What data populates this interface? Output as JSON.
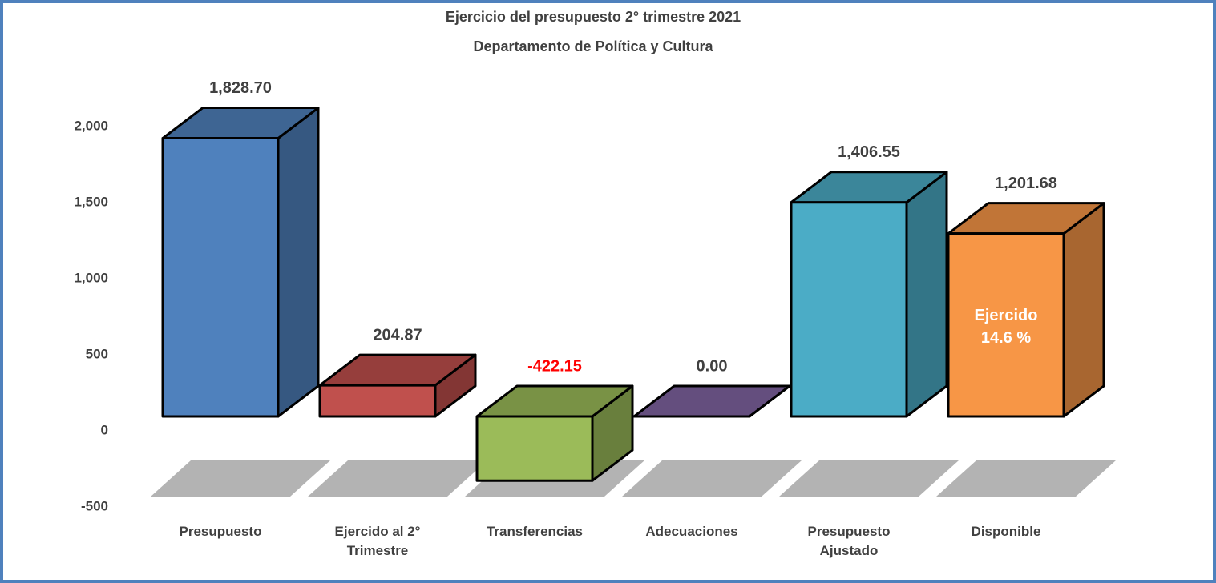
{
  "chart_data": {
    "type": "bar3d",
    "title": "Ejercicio del presupuesto  2° trimestre 2021",
    "subtitle": "Departamento de Política y Cultura",
    "categories": [
      "Presupuesto",
      "Ejercido al 2° Trimestre",
      "Transferencias",
      "Adecuaciones",
      "Presupuesto Ajustado",
      "Disponible"
    ],
    "values": [
      1828.7,
      204.87,
      -422.15,
      0.0,
      1406.55,
      1201.68
    ],
    "value_labels": [
      "1,828.70",
      "204.87",
      "-422.15",
      "0.00",
      "1,406.55",
      "1,201.68"
    ],
    "value_label_colors": [
      "#404040",
      "#404040",
      "#ff0000",
      "#404040",
      "#404040",
      "#404040"
    ],
    "colors": [
      "#4f81bd",
      "#c0504d",
      "#9bbb59",
      "#8064a2",
      "#4bacc6",
      "#f79646"
    ],
    "ylim": [
      -500,
      2000
    ],
    "yticks": [
      -500,
      0,
      500,
      {
        "value": 1000,
        "label": "1,000"
      },
      {
        "value": 1500,
        "label": "1,500"
      },
      {
        "value": 2000,
        "label": "2,000"
      }
    ],
    "annotations": [
      {
        "text": "Ejercido 14.6 %",
        "category": "Disponible"
      }
    ]
  }
}
